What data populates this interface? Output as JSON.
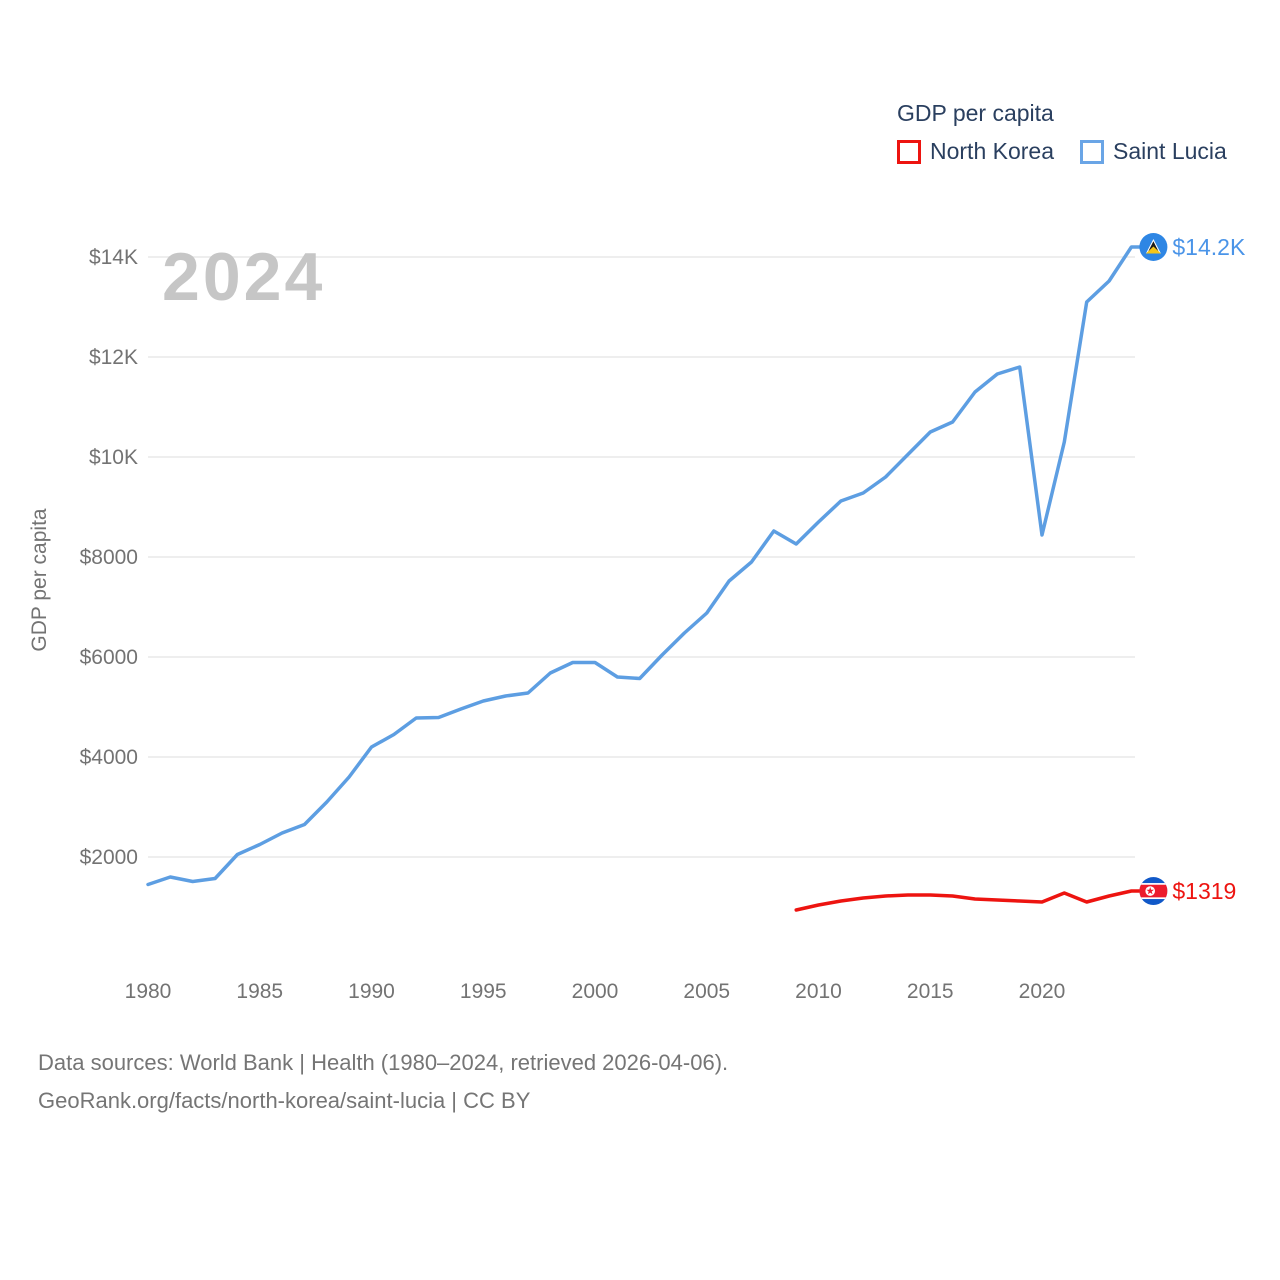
{
  "watermark": "2024",
  "legend": {
    "title": "GDP per capita",
    "items": [
      {
        "label": "North Korea",
        "color": "#ed1410"
      },
      {
        "label": "Saint Lucia",
        "color": "#6aa5e6"
      }
    ]
  },
  "y_axis": {
    "title": "GDP per capita",
    "ticks": [
      {
        "value": 2000,
        "label": "$2000"
      },
      {
        "value": 4000,
        "label": "$4000"
      },
      {
        "value": 6000,
        "label": "$6000"
      },
      {
        "value": 8000,
        "label": "$8000"
      },
      {
        "value": 10000,
        "label": "$10K"
      },
      {
        "value": 12000,
        "label": "$12K"
      },
      {
        "value": 14000,
        "label": "$14K"
      }
    ]
  },
  "x_axis": {
    "ticks": [
      {
        "value": 1980,
        "label": "1980"
      },
      {
        "value": 1985,
        "label": "1985"
      },
      {
        "value": 1990,
        "label": "1990"
      },
      {
        "value": 1995,
        "label": "1995"
      },
      {
        "value": 2000,
        "label": "2000"
      },
      {
        "value": 2005,
        "label": "2005"
      },
      {
        "value": 2010,
        "label": "2010"
      },
      {
        "value": 2015,
        "label": "2015"
      },
      {
        "value": 2020,
        "label": "2020"
      }
    ]
  },
  "footer": {
    "line1": "Data sources: World Bank | Health (1980–2024, retrieved 2026-04-06).",
    "line2": "GeoRank.org/facts/north-korea/saint-lucia | CC BY"
  },
  "chart_data": {
    "type": "line",
    "title": "GDP per capita",
    "xlabel": "",
    "ylabel": "GDP per capita",
    "xlim": [
      1979,
      2025
    ],
    "ylim": [
      0,
      14500
    ],
    "grid": "horizontal",
    "legend_position": "top-right",
    "series": [
      {
        "name": "North Korea",
        "color": "#ed1410",
        "end_label": "$1319",
        "end_label_color": "#ed1410",
        "flag_icon": "north-korea-flag-icon",
        "x": [
          2009,
          2010,
          2011,
          2012,
          2013,
          2014,
          2015,
          2016,
          2017,
          2018,
          2019,
          2020,
          2021,
          2022,
          2023,
          2024
        ],
        "values": [
          940,
          1040,
          1120,
          1180,
          1220,
          1240,
          1240,
          1220,
          1160,
          1140,
          1120,
          1100,
          1280,
          1100,
          1220,
          1319
        ]
      },
      {
        "name": "Saint Lucia",
        "color": "#5d9ee2",
        "end_label": "$14.2K",
        "end_label_color": "#4a94e8",
        "flag_icon": "saint-lucia-flag-icon",
        "x": [
          1980,
          1981,
          1982,
          1983,
          1984,
          1985,
          1986,
          1987,
          1988,
          1989,
          1990,
          1991,
          1992,
          1993,
          1994,
          1995,
          1996,
          1997,
          1998,
          1999,
          2000,
          2001,
          2002,
          2003,
          2004,
          2005,
          2006,
          2007,
          2008,
          2009,
          2010,
          2011,
          2012,
          2013,
          2014,
          2015,
          2016,
          2017,
          2018,
          2019,
          2020,
          2021,
          2022,
          2023,
          2024
        ],
        "values": [
          1450,
          1600,
          1510,
          1570,
          2050,
          2250,
          2480,
          2650,
          3100,
          3600,
          4200,
          4450,
          4780,
          4790,
          4960,
          5120,
          5220,
          5280,
          5680,
          5890,
          5890,
          5600,
          5570,
          6040,
          6480,
          6880,
          7520,
          7900,
          8520,
          8260,
          8700,
          9120,
          9280,
          9600,
          10050,
          10500,
          10700,
          11300,
          11660,
          11800,
          8440,
          10300,
          13100,
          13520,
          14200
        ]
      }
    ]
  }
}
